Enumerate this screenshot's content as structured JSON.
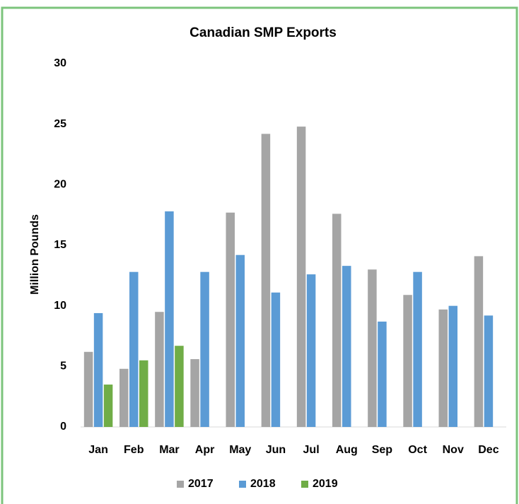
{
  "chart_data": {
    "type": "bar",
    "title": "Canadian  SMP Exports",
    "y_label": "Million Pounds",
    "categories": [
      "Jan",
      "Feb",
      "Mar",
      "Apr",
      "May",
      "Jun",
      "Jul",
      "Aug",
      "Sep",
      "Oct",
      "Nov",
      "Dec"
    ],
    "series": [
      {
        "name": "2017",
        "color": "#a5a5a5",
        "values": [
          6.2,
          4.8,
          9.5,
          5.6,
          17.7,
          24.2,
          24.8,
          17.6,
          13.0,
          10.9,
          9.7,
          14.1
        ]
      },
      {
        "name": "2018",
        "color": "#5b9bd5",
        "values": [
          9.4,
          12.8,
          17.8,
          12.8,
          14.2,
          11.1,
          12.6,
          13.3,
          8.7,
          12.8,
          10.0,
          9.2
        ]
      },
      {
        "name": "2019",
        "color": "#70ad47",
        "values": [
          3.5,
          5.5,
          6.7,
          null,
          null,
          null,
          null,
          null,
          null,
          null,
          null,
          null
        ]
      }
    ],
    "ylim": [
      0,
      30
    ],
    "yticks": [
      0,
      5,
      10,
      15,
      20,
      25,
      30
    ],
    "grid": false,
    "legend": "bottom"
  }
}
